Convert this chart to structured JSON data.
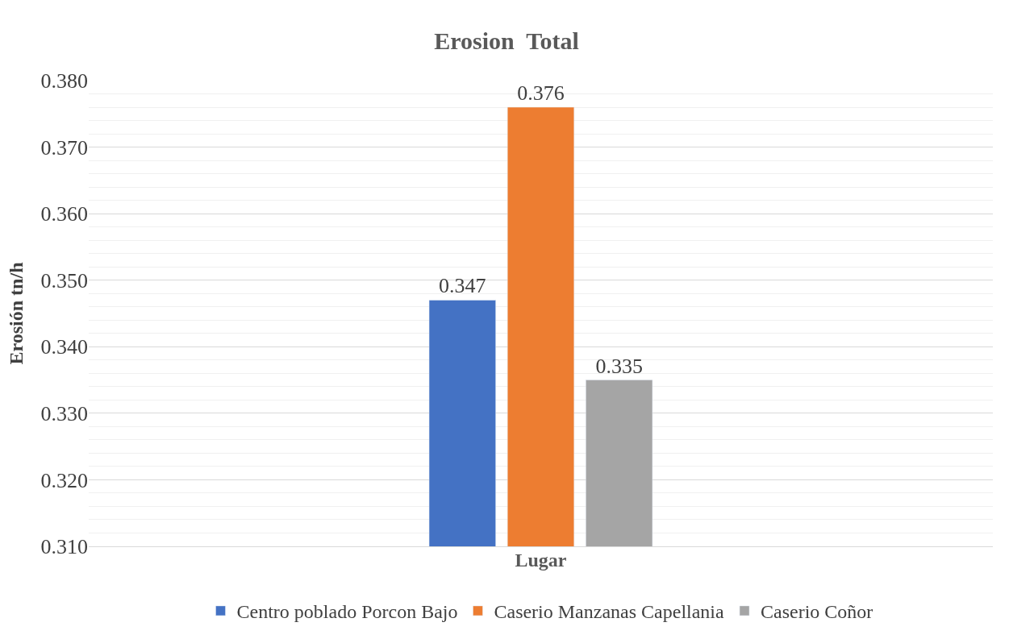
{
  "chart_data": {
    "type": "bar",
    "title": "Erosion  Total",
    "xlabel": "Lugar",
    "ylabel": "Erosión tn/h",
    "categories": [
      null
    ],
    "series": [
      {
        "name": "Centro poblado Porcon Bajo",
        "color": "#4472c4",
        "values": [
          0.347
        ]
      },
      {
        "name": "Caserio Manzanas Capellania",
        "color": "#ed7d31",
        "values": [
          0.376
        ]
      },
      {
        "name": "Caserio Coñor",
        "color": "#a5a5a5",
        "values": [
          0.335
        ]
      }
    ],
    "ylim": [
      0.31,
      0.38
    ],
    "yticks": [
      {
        "value": 0.31,
        "label": "0.310"
      },
      {
        "value": 0.32,
        "label": "0.320"
      },
      {
        "value": 0.33,
        "label": "0.330"
      },
      {
        "value": 0.34,
        "label": "0.340"
      },
      {
        "value": 0.35,
        "label": "0.350"
      },
      {
        "value": 0.36,
        "label": "0.360"
      },
      {
        "value": 0.37,
        "label": "0.370"
      },
      {
        "value": 0.38,
        "label": "0.380"
      }
    ],
    "data_labels": true,
    "grid": true,
    "legend": "bottom"
  }
}
